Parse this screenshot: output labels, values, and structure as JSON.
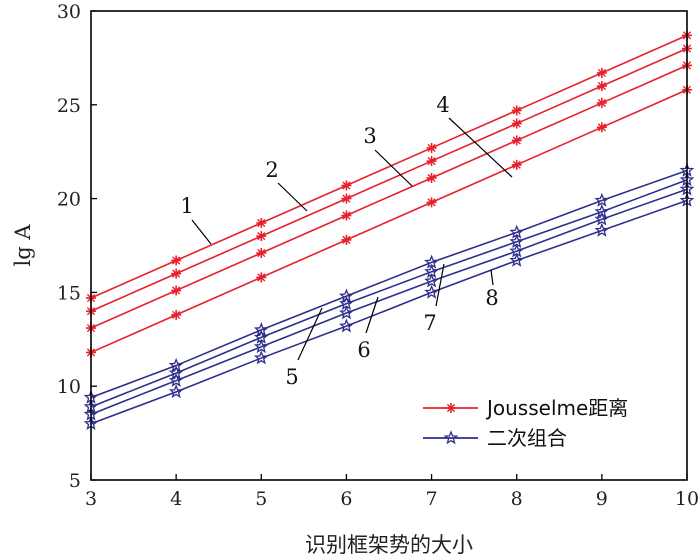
{
  "chart_data": {
    "type": "line",
    "title": "",
    "xlabel": "识别框架势的大小",
    "ylabel": "lg A",
    "xlim": [
      3,
      10
    ],
    "ylim": [
      5,
      30
    ],
    "x": [
      3,
      4,
      5,
      6,
      7,
      8,
      9,
      10
    ],
    "xticks": [
      "3",
      "4",
      "5",
      "6",
      "7",
      "8",
      "9",
      "10"
    ],
    "yticks": [
      "5",
      "10",
      "15",
      "20",
      "25",
      "30"
    ],
    "grid": false,
    "legend_position": "bottom-right",
    "legend": [
      {
        "name": "Jousselme距离",
        "color": "#e8202a",
        "marker": "asterisk"
      },
      {
        "name": "二次组合",
        "color": "#2e2e8c",
        "marker": "star"
      }
    ],
    "series": [
      {
        "name": "1",
        "group": "Jousselme距离",
        "values": [
          14.7,
          16.7,
          18.7,
          20.7,
          22.7,
          24.7,
          26.7,
          28.7
        ]
      },
      {
        "name": "2",
        "group": "Jousselme距离",
        "values": [
          14.0,
          16.0,
          18.0,
          20.0,
          22.0,
          24.0,
          26.0,
          28.0
        ]
      },
      {
        "name": "3",
        "group": "Jousselme距离",
        "values": [
          13.1,
          15.1,
          17.1,
          19.1,
          21.1,
          23.1,
          25.1,
          27.1
        ]
      },
      {
        "name": "4",
        "group": "Jousselme距离",
        "values": [
          11.8,
          13.8,
          15.8,
          17.8,
          19.8,
          21.8,
          23.8,
          25.8
        ]
      },
      {
        "name": "5",
        "group": "二次组合",
        "values": [
          9.4,
          11.1,
          13.0,
          14.8,
          16.6,
          18.2,
          19.9,
          21.5
        ]
      },
      {
        "name": "6",
        "group": "二次组合",
        "values": [
          8.9,
          10.7,
          12.6,
          14.4,
          16.1,
          17.7,
          19.3,
          21.0
        ]
      },
      {
        "name": "7",
        "group": "二次组合",
        "values": [
          8.5,
          10.3,
          12.1,
          13.9,
          15.6,
          17.2,
          18.9,
          20.5
        ]
      },
      {
        "name": "8",
        "group": "二次组合",
        "values": [
          8.0,
          9.7,
          11.5,
          13.2,
          15.0,
          16.7,
          18.3,
          19.9
        ]
      }
    ],
    "annotations": [
      "1",
      "2",
      "3",
      "4",
      "5",
      "6",
      "7",
      "8"
    ]
  }
}
